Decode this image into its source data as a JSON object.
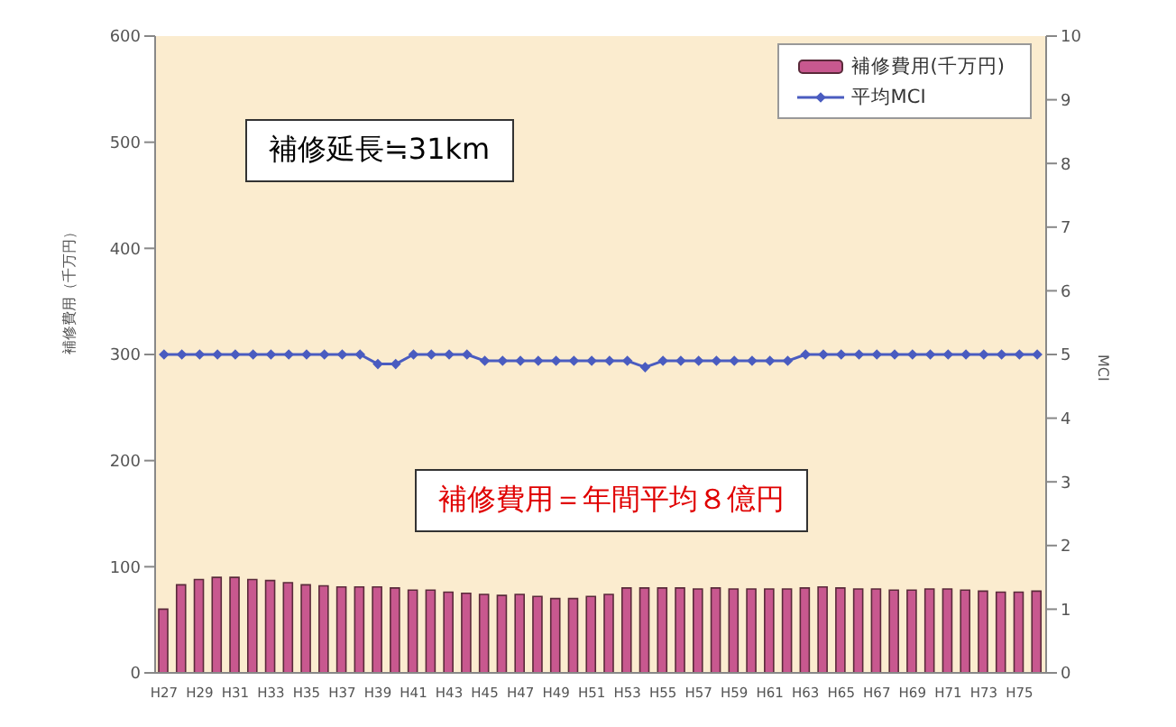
{
  "chart_data": {
    "type": "bar",
    "categories": [
      "H27",
      null,
      "H29",
      null,
      "H31",
      null,
      "H33",
      null,
      "H35",
      null,
      "H37",
      null,
      "H39",
      null,
      "H41",
      null,
      "H43",
      null,
      "H45",
      null,
      "H47",
      null,
      "H49",
      null,
      "H51",
      null,
      "H53",
      null,
      "H55",
      null,
      "H57",
      null,
      "H59",
      null,
      "H61",
      null,
      "H63",
      null,
      "H65",
      null,
      "H67",
      null,
      "H69",
      null,
      "H71",
      null,
      "H73",
      null,
      "H75",
      null
    ],
    "series": [
      {
        "name": "補修費用(千万円)",
        "color": "#c8588f",
        "values": [
          60,
          83,
          88,
          90,
          90,
          88,
          87,
          85,
          83,
          82,
          81,
          81,
          81,
          80,
          78,
          78,
          76,
          75,
          74,
          73,
          74,
          72,
          70,
          70,
          72,
          74,
          80,
          80,
          80,
          80,
          79,
          80,
          79,
          79,
          79,
          79,
          80,
          81,
          80,
          79,
          79,
          78,
          78,
          79,
          79,
          78,
          77,
          76,
          76,
          77
        ]
      },
      {
        "name": "平均MCI",
        "type": "line",
        "axis": "y2",
        "color": "#4a5cc0",
        "values": [
          5,
          5,
          5,
          5,
          5,
          5,
          5,
          5,
          5,
          5,
          5,
          5,
          4.85,
          4.85,
          5,
          5,
          5,
          5,
          4.9,
          4.9,
          4.9,
          4.9,
          4.9,
          4.9,
          4.9,
          4.9,
          4.9,
          4.8,
          4.9,
          4.9,
          4.9,
          4.9,
          4.9,
          4.9,
          4.9,
          4.9,
          5,
          5,
          5,
          5,
          5,
          5,
          5,
          5,
          5,
          5,
          5,
          5,
          5,
          5
        ]
      }
    ],
    "ylabel": "補修費用（千万円）",
    "y2label": "MCI",
    "ylim": [
      0,
      600
    ],
    "yticks": [
      0,
      100,
      200,
      300,
      400,
      500,
      600
    ],
    "y2lim": [
      0,
      10
    ],
    "y2ticks": [
      0,
      1,
      2,
      3,
      4,
      5,
      6,
      7,
      8,
      9,
      10
    ],
    "annotations": [
      "補修延長≒31km",
      "補修費用＝年間平均８億円"
    ],
    "legend": "top right",
    "marker": "diamond"
  }
}
